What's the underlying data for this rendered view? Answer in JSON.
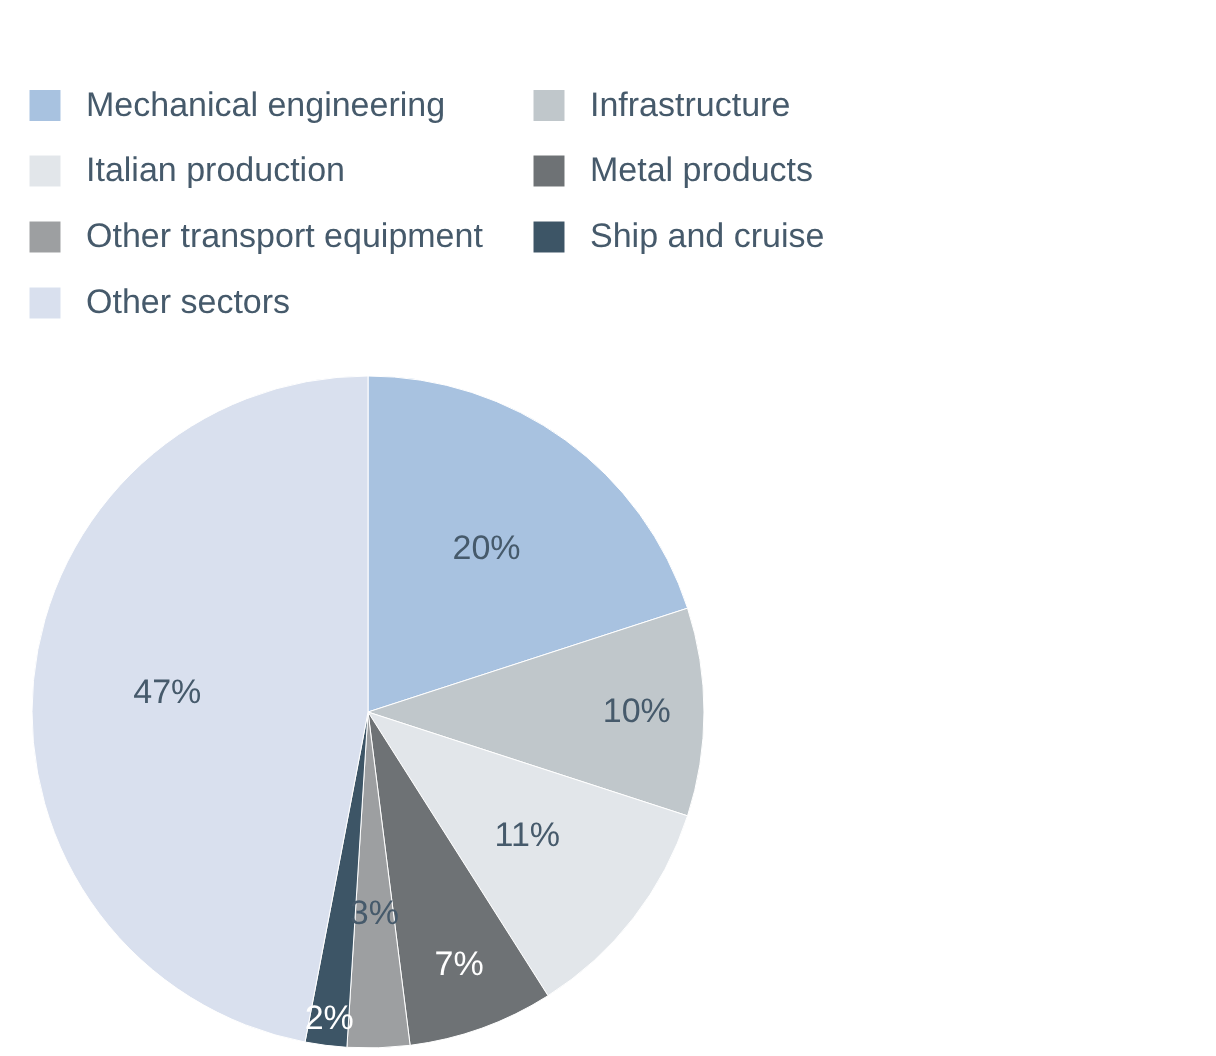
{
  "chart_data": {
    "type": "pie",
    "categories": [
      "Mechanical engineering",
      "Infrastructure",
      "Italian production",
      "Metal products",
      "Other transport equipment",
      "Ship and cruise",
      "Other sectors"
    ],
    "values": [
      20,
      10,
      11,
      7,
      3,
      2,
      47
    ],
    "colors": [
      "#a8c2e0",
      "#c0c7cb",
      "#e2e6ea",
      "#6e7275",
      "#9d9fa1",
      "#3d5566",
      "#d9e0ee"
    ],
    "value_labels": [
      "20%",
      "10%",
      "11%",
      "7%",
      "3%",
      "2%",
      "47%"
    ],
    "legend": "top"
  }
}
